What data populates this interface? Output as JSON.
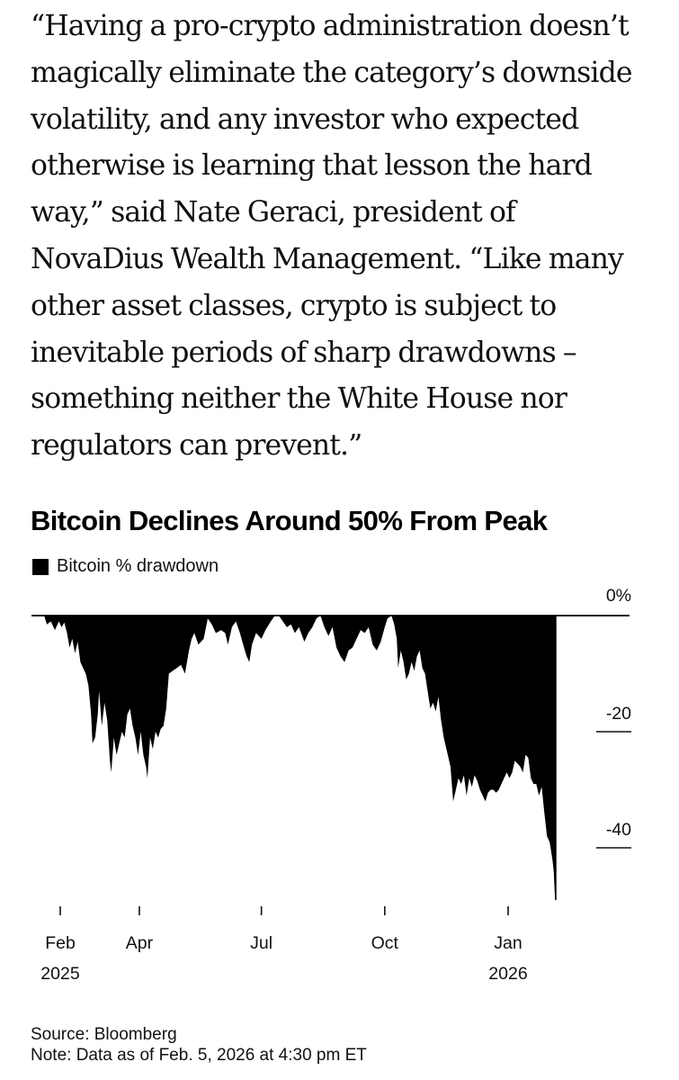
{
  "article": {
    "quote_lines": [
      "“Having a pro-crypto administration doesn’t",
      "magically eliminate the category’s downside",
      "volatility, and any investor who expected",
      "otherwise is learning that lesson the hard",
      "way,” said Nate Geraci, president of",
      "NovaDius Wealth Management. “Like many",
      "other asset classes, crypto is subject to",
      "inevitable periods of sharp drawdowns –",
      "something neither the White House nor",
      "regulators can prevent.”"
    ]
  },
  "chart_data": {
    "type": "area",
    "title": "Bitcoin Declines Around 50% From Peak",
    "legend": [
      {
        "name": "Bitcoin % drawdown",
        "color": "#000000"
      }
    ],
    "legend_placement": "top-left",
    "xlabel": "",
    "ylabel": "",
    "ylim": [
      -50,
      0
    ],
    "y_ticks": [
      {
        "value": 0,
        "label": "0%"
      },
      {
        "value": -20,
        "label": "-20"
      },
      {
        "value": -40,
        "label": "-40"
      }
    ],
    "x_ticks": [
      {
        "date": "2025-02-01",
        "label": "Feb",
        "sublabel": "2025"
      },
      {
        "date": "2025-04-01",
        "label": "Apr",
        "sublabel": ""
      },
      {
        "date": "2025-07-01",
        "label": "Jul",
        "sublabel": ""
      },
      {
        "date": "2025-10-01",
        "label": "Oct",
        "sublabel": ""
      },
      {
        "date": "2026-01-01",
        "label": "Jan",
        "sublabel": "2026"
      }
    ],
    "x_range": [
      "2025-01-20",
      "2026-03-15"
    ],
    "grid": false,
    "series": [
      {
        "name": "Bitcoin % drawdown",
        "points": [
          [
            "2025-01-20",
            0
          ],
          [
            "2025-01-22",
            -1.5
          ],
          [
            "2025-01-25",
            -1
          ],
          [
            "2025-01-28",
            -2.5
          ],
          [
            "2025-01-31",
            -1
          ],
          [
            "2025-02-02",
            -2
          ],
          [
            "2025-02-04",
            -1.2
          ],
          [
            "2025-02-06",
            -3
          ],
          [
            "2025-02-08",
            -5.5
          ],
          [
            "2025-02-10",
            -4
          ],
          [
            "2025-02-12",
            -6.5
          ],
          [
            "2025-02-14",
            -4.5
          ],
          [
            "2025-02-16",
            -8
          ],
          [
            "2025-02-18",
            -9
          ],
          [
            "2025-02-20",
            -10
          ],
          [
            "2025-02-22",
            -12
          ],
          [
            "2025-02-24",
            -17
          ],
          [
            "2025-02-25",
            -22
          ],
          [
            "2025-02-27",
            -21
          ],
          [
            "2025-03-01",
            -17
          ],
          [
            "2025-03-02",
            -13
          ],
          [
            "2025-03-04",
            -19
          ],
          [
            "2025-03-06",
            -15
          ],
          [
            "2025-03-08",
            -18
          ],
          [
            "2025-03-10",
            -25
          ],
          [
            "2025-03-11",
            -27
          ],
          [
            "2025-03-13",
            -21
          ],
          [
            "2025-03-15",
            -24
          ],
          [
            "2025-03-17",
            -22
          ],
          [
            "2025-03-19",
            -20
          ],
          [
            "2025-03-21",
            -21
          ],
          [
            "2025-03-23",
            -17
          ],
          [
            "2025-03-25",
            -16
          ],
          [
            "2025-03-27",
            -19
          ],
          [
            "2025-03-29",
            -21
          ],
          [
            "2025-03-31",
            -24
          ],
          [
            "2025-04-02",
            -20
          ],
          [
            "2025-04-04",
            -24
          ],
          [
            "2025-04-06",
            -26
          ],
          [
            "2025-04-07",
            -28
          ],
          [
            "2025-04-09",
            -21
          ],
          [
            "2025-04-11",
            -23
          ],
          [
            "2025-04-13",
            -20
          ],
          [
            "2025-04-15",
            -21
          ],
          [
            "2025-04-17",
            -19.5
          ],
          [
            "2025-04-19",
            -19
          ],
          [
            "2025-04-21",
            -16
          ],
          [
            "2025-04-23",
            -10
          ],
          [
            "2025-04-26",
            -9.5
          ],
          [
            "2025-04-29",
            -9
          ],
          [
            "2025-05-02",
            -8.5
          ],
          [
            "2025-05-05",
            -10
          ],
          [
            "2025-05-08",
            -6
          ],
          [
            "2025-05-10",
            -4
          ],
          [
            "2025-05-12",
            -3
          ],
          [
            "2025-05-15",
            -5
          ],
          [
            "2025-05-19",
            -4
          ],
          [
            "2025-05-22",
            -0.5
          ],
          [
            "2025-05-25",
            -1.5
          ],
          [
            "2025-05-28",
            -3
          ],
          [
            "2025-06-01",
            -2.5
          ],
          [
            "2025-06-04",
            -3
          ],
          [
            "2025-06-06",
            -5
          ],
          [
            "2025-06-09",
            -2
          ],
          [
            "2025-06-12",
            -1
          ],
          [
            "2025-06-15",
            -3
          ],
          [
            "2025-06-18",
            -5.5
          ],
          [
            "2025-06-20",
            -7
          ],
          [
            "2025-06-22",
            -8
          ],
          [
            "2025-06-24",
            -5
          ],
          [
            "2025-06-27",
            -3
          ],
          [
            "2025-07-01",
            -4
          ],
          [
            "2025-07-04",
            -2.5
          ],
          [
            "2025-07-08",
            -1
          ],
          [
            "2025-07-11",
            0
          ],
          [
            "2025-07-14",
            0
          ],
          [
            "2025-07-17",
            -1
          ],
          [
            "2025-07-20",
            -2
          ],
          [
            "2025-07-23",
            -1.5
          ],
          [
            "2025-07-26",
            -3
          ],
          [
            "2025-07-29",
            -2
          ],
          [
            "2025-08-02",
            -4.5
          ],
          [
            "2025-08-05",
            -3
          ],
          [
            "2025-08-08",
            -2
          ],
          [
            "2025-08-11",
            -0.5
          ],
          [
            "2025-08-14",
            0
          ],
          [
            "2025-08-17",
            -2
          ],
          [
            "2025-08-20",
            -3.5
          ],
          [
            "2025-08-23",
            -2
          ],
          [
            "2025-08-26",
            -5.5
          ],
          [
            "2025-08-29",
            -7
          ],
          [
            "2025-09-01",
            -8
          ],
          [
            "2025-09-04",
            -6
          ],
          [
            "2025-09-07",
            -5.5
          ],
          [
            "2025-09-10",
            -4
          ],
          [
            "2025-09-13",
            -2.5
          ],
          [
            "2025-09-16",
            -3
          ],
          [
            "2025-09-19",
            -2
          ],
          [
            "2025-09-22",
            -5
          ],
          [
            "2025-09-25",
            -6
          ],
          [
            "2025-09-28",
            -4.5
          ],
          [
            "2025-10-01",
            -2
          ],
          [
            "2025-10-03",
            -0.5
          ],
          [
            "2025-10-06",
            0
          ],
          [
            "2025-10-08",
            -1.5
          ],
          [
            "2025-10-10",
            -4
          ],
          [
            "2025-10-11",
            -9
          ],
          [
            "2025-10-13",
            -6
          ],
          [
            "2025-10-15",
            -8
          ],
          [
            "2025-10-17",
            -11
          ],
          [
            "2025-10-19",
            -10
          ],
          [
            "2025-10-21",
            -8
          ],
          [
            "2025-10-23",
            -9.5
          ],
          [
            "2025-10-25",
            -7
          ],
          [
            "2025-10-27",
            -6
          ],
          [
            "2025-10-29",
            -9
          ],
          [
            "2025-10-31",
            -10
          ],
          [
            "2025-11-02",
            -13
          ],
          [
            "2025-11-04",
            -16
          ],
          [
            "2025-11-06",
            -15
          ],
          [
            "2025-11-08",
            -16.5
          ],
          [
            "2025-11-10",
            -14
          ],
          [
            "2025-11-12",
            -18
          ],
          [
            "2025-11-14",
            -21
          ],
          [
            "2025-11-17",
            -24
          ],
          [
            "2025-11-19",
            -26
          ],
          [
            "2025-11-21",
            -32
          ],
          [
            "2025-11-23",
            -30
          ],
          [
            "2025-11-25",
            -28
          ],
          [
            "2025-11-27",
            -29
          ],
          [
            "2025-11-29",
            -27.5
          ],
          [
            "2025-12-01",
            -31
          ],
          [
            "2025-12-03",
            -28
          ],
          [
            "2025-12-05",
            -29.5
          ],
          [
            "2025-12-07",
            -27.5
          ],
          [
            "2025-12-09",
            -28.5
          ],
          [
            "2025-12-11",
            -30
          ],
          [
            "2025-12-13",
            -31
          ],
          [
            "2025-12-15",
            -32
          ],
          [
            "2025-12-17",
            -30.5
          ],
          [
            "2025-12-19",
            -30
          ],
          [
            "2025-12-21",
            -30
          ],
          [
            "2025-12-23",
            -30.5
          ],
          [
            "2025-12-25",
            -30
          ],
          [
            "2025-12-27",
            -29
          ],
          [
            "2025-12-29",
            -28
          ],
          [
            "2025-12-31",
            -27
          ],
          [
            "2026-01-02",
            -28
          ],
          [
            "2026-01-04",
            -27
          ],
          [
            "2026-01-06",
            -25
          ],
          [
            "2026-01-08",
            -25.5
          ],
          [
            "2026-01-10",
            -26
          ],
          [
            "2026-01-12",
            -27
          ],
          [
            "2026-01-14",
            -24
          ],
          [
            "2026-01-16",
            -24.5
          ],
          [
            "2026-01-18",
            -28
          ],
          [
            "2026-01-20",
            -29
          ],
          [
            "2026-01-22",
            -29
          ],
          [
            "2026-01-24",
            -31
          ],
          [
            "2026-01-26",
            -29.5
          ],
          [
            "2026-01-28",
            -34
          ],
          [
            "2026-01-30",
            -38
          ],
          [
            "2026-02-01",
            -39
          ],
          [
            "2026-02-03",
            -42
          ],
          [
            "2026-02-04",
            -44
          ],
          [
            "2026-02-05",
            -49
          ]
        ]
      }
    ],
    "footnotes": {
      "source": "Source: Bloomberg",
      "note": "Note: Data as of Feb. 5, 2026 at 4:30 pm ET"
    }
  }
}
